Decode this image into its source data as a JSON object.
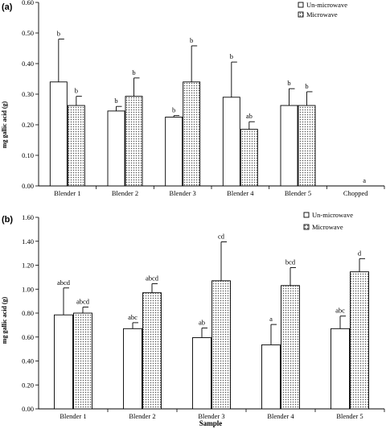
{
  "colors": {
    "axis": "#000000",
    "bar_fill_un": "#ffffff",
    "bar_pattern_mw": "dotted"
  },
  "chart_data": [
    {
      "type": "bar",
      "panel_label": "(a)",
      "ylabel": "mg gallic acid (g)",
      "xlabel": "",
      "ylim": [
        0,
        0.6
      ],
      "yticks": [
        "0.00",
        "0.10",
        "0.20",
        "0.30",
        "0.40",
        "0.50",
        "0.60"
      ],
      "categories": [
        "Blender 1",
        "Blender 2",
        "Blender 3",
        "Blender 4",
        "Blender 5",
        "Chopped"
      ],
      "legend_position": "top-right",
      "series": [
        {
          "name": "Un-microwave",
          "pattern": "white",
          "values": [
            0.34,
            0.245,
            0.225,
            0.29,
            0.263,
            0
          ],
          "errors": [
            0.14,
            0.015,
            0.005,
            0.115,
            0.055,
            0
          ],
          "letters": [
            "b",
            "b",
            "b",
            "b",
            "b",
            ""
          ]
        },
        {
          "name": "Microwave",
          "pattern": "dotted",
          "values": [
            0.263,
            0.293,
            0.34,
            0.185,
            0.263,
            0
          ],
          "errors": [
            0.03,
            0.06,
            0.118,
            0.025,
            0.045,
            0
          ],
          "letters": [
            "b",
            "b",
            "b",
            "ab",
            "b",
            "a"
          ]
        }
      ]
    },
    {
      "type": "bar",
      "panel_label": "(b)",
      "ylabel": "mg gallic acid (g)",
      "xlabel": "Sample",
      "ylim": [
        0,
        1.6
      ],
      "yticks": [
        "0.00",
        "0.20",
        "0.40",
        "0.60",
        "0.80",
        "1.00",
        "1.20",
        "1.40",
        "1.60"
      ],
      "categories": [
        "Blender 1",
        "Blender 2",
        "Blender 3",
        "Blender 4",
        "Blender 5"
      ],
      "legend_position": "top-right",
      "series": [
        {
          "name": "Un-microwave",
          "pattern": "white",
          "values": [
            0.785,
            0.67,
            0.595,
            0.535,
            0.67
          ],
          "errors": [
            0.225,
            0.05,
            0.08,
            0.17,
            0.105
          ],
          "letters": [
            "abcd",
            "abc",
            "ab",
            "a",
            "abc"
          ]
        },
        {
          "name": "Microwave",
          "pattern": "dotted",
          "values": [
            0.8,
            0.97,
            1.07,
            1.03,
            1.145
          ],
          "errors": [
            0.05,
            0.075,
            0.325,
            0.15,
            0.11
          ],
          "letters": [
            "abcd",
            "abcd",
            "cd",
            "bcd",
            "d"
          ]
        }
      ]
    }
  ]
}
